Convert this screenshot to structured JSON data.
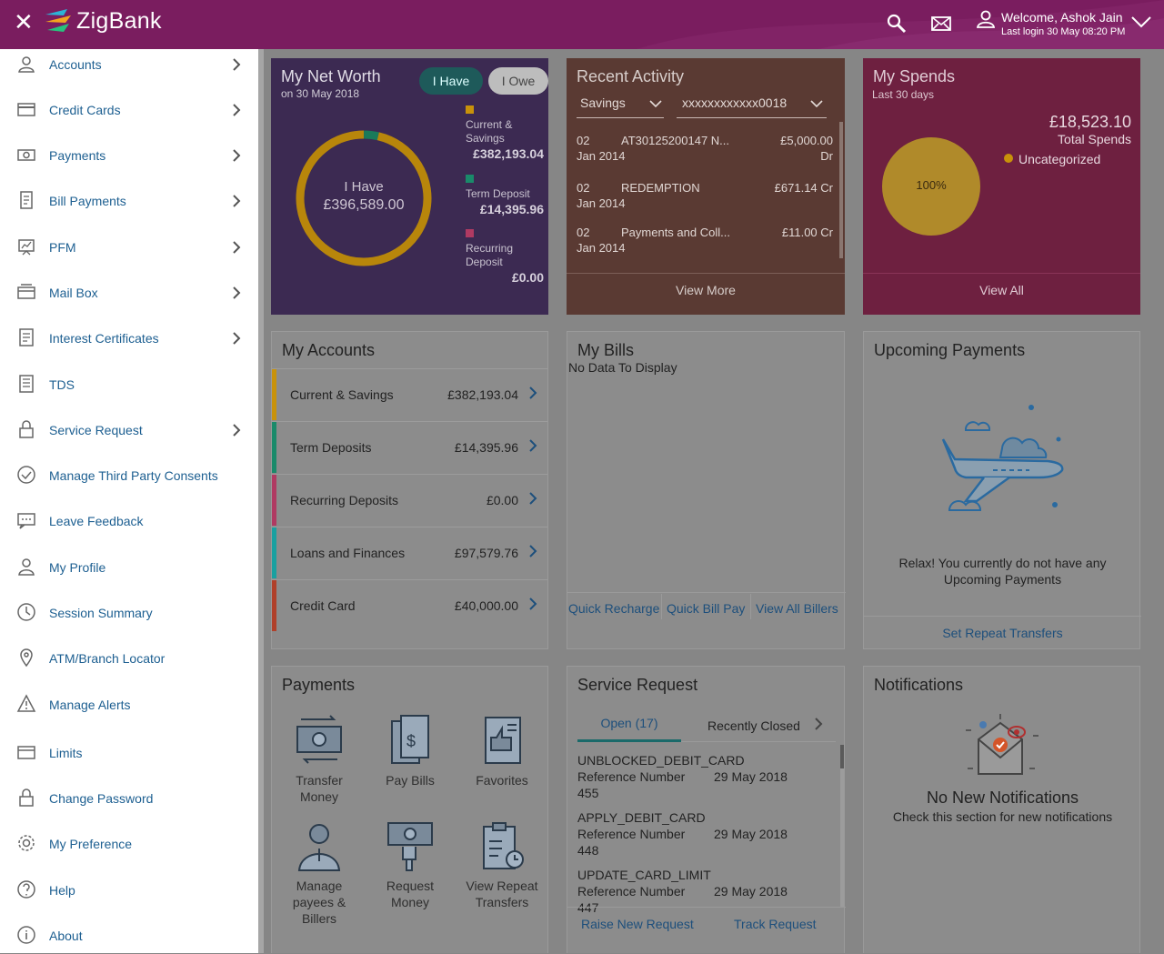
{
  "header": {
    "brand": "ZigBank",
    "welcome": "Welcome, Ashok Jain",
    "last_login": "Last login 30 May 08:20 PM",
    "close_icon": "close-icon",
    "colors": {
      "header": "#7a1d5f",
      "link": "#1d5f91"
    }
  },
  "sidebar": {
    "items": [
      {
        "label": "Accounts",
        "icon": "accounts-icon",
        "arrow": true
      },
      {
        "label": "Credit Cards",
        "icon": "credit-card-icon",
        "arrow": true
      },
      {
        "label": "Payments",
        "icon": "payments-icon",
        "arrow": true
      },
      {
        "label": "Bill Payments",
        "icon": "bill-payments-icon",
        "arrow": true
      },
      {
        "label": "PFM",
        "icon": "pfm-icon",
        "arrow": true
      },
      {
        "label": "Mail Box",
        "icon": "mailbox-icon",
        "arrow": true
      },
      {
        "label": "Interest Certificates",
        "icon": "certificate-icon",
        "arrow": true
      },
      {
        "label": "TDS",
        "icon": "tds-icon",
        "arrow": false
      },
      {
        "label": "Service Request",
        "icon": "lock-icon",
        "arrow": true
      },
      {
        "label": "Manage Third Party Consents",
        "icon": "check-circle-icon",
        "arrow": false
      },
      {
        "label": "Leave Feedback",
        "icon": "feedback-icon",
        "arrow": false
      },
      {
        "label": "My Profile",
        "icon": "profile-icon",
        "arrow": false
      },
      {
        "label": "Session Summary",
        "icon": "clock-icon",
        "arrow": false
      },
      {
        "label": "ATM/Branch Locator",
        "icon": "location-pin-icon",
        "arrow": false
      },
      {
        "label": "Manage Alerts",
        "icon": "alert-icon",
        "arrow": false
      },
      {
        "label": "Limits",
        "icon": "limits-icon",
        "arrow": false
      },
      {
        "label": "Change Password",
        "icon": "lock-icon",
        "arrow": false
      },
      {
        "label": "My Preference",
        "icon": "gear-icon",
        "arrow": false
      },
      {
        "label": "Help",
        "icon": "help-icon",
        "arrow": false
      },
      {
        "label": "About",
        "icon": "info-icon",
        "arrow": false
      }
    ]
  },
  "net_worth": {
    "title": "My Net Worth",
    "date": "on 30 May 2018",
    "tab_have": "I Have",
    "tab_owe": "I Owe",
    "center_label": "I Have",
    "center_value": "£396,589.00",
    "legend": [
      {
        "label": "Current & Savings",
        "line1": "Current &",
        "line2": "Savings",
        "value": "£382,193.04",
        "color": "#c8920a"
      },
      {
        "label": "Term Deposit",
        "line1": "Term Deposit",
        "line2": "",
        "value": "£14,395.96",
        "color": "#1a8a6a"
      },
      {
        "label": "Recurring Deposit",
        "line1": "Recurring",
        "line2": "Deposit",
        "value": "£0.00",
        "color": "#b03a62"
      }
    ],
    "donut_fractions": [
      0.9637,
      0.0363,
      0
    ]
  },
  "recent_activity": {
    "title": "Recent Activity",
    "account_type": "Savings",
    "account_number": "xxxxxxxxxxxx0018",
    "rows": [
      {
        "day": "02",
        "month": "Jan 2014",
        "desc": "AT30125200147 N...",
        "amount": "£5,000.00",
        "type": "Dr"
      },
      {
        "day": "02",
        "month": "Jan 2014",
        "desc": "REDEMPTION",
        "amount": "£671.14 Cr",
        "type": ""
      },
      {
        "day": "02",
        "month": "Jan 2014",
        "desc": "Payments and Coll...",
        "amount": "£11.00 Cr",
        "type": ""
      }
    ],
    "view_more": "View More"
  },
  "my_spends": {
    "title": "My Spends",
    "period": "Last 30 days",
    "total": "£18,523.10",
    "total_label": "Total Spends",
    "legend": "Uncategorized",
    "pie_label": "100%",
    "view_all": "View All"
  },
  "my_accounts": {
    "title": "My Accounts",
    "rows": [
      {
        "name": "Current & Savings",
        "amount": "£382,193.04",
        "color": "#c8920a"
      },
      {
        "name": "Term Deposits",
        "amount": "£14,395.96",
        "color": "#1a8a6a"
      },
      {
        "name": "Recurring Deposits",
        "amount": "£0.00",
        "color": "#b03a62"
      },
      {
        "name": "Loans and Finances",
        "amount": "£97,579.76",
        "color": "#1aa0a0"
      },
      {
        "name": "Credit Card",
        "amount": "£40,000.00",
        "color": "#b0402a"
      }
    ]
  },
  "my_bills": {
    "title": "My Bills",
    "empty": "No Data To Display",
    "links": [
      "Quick Recharge",
      "Quick Bill Pay",
      "View All Billers"
    ]
  },
  "upcoming": {
    "title": "Upcoming Payments",
    "message": "Relax! You currently do not have any Upcoming Payments",
    "link": "Set Repeat Transfers"
  },
  "payments": {
    "title": "Payments",
    "items": [
      {
        "label": "Transfer Money",
        "icon": "transfer-money-icon"
      },
      {
        "label": "Pay Bills",
        "icon": "pay-bills-icon"
      },
      {
        "label": "Favorites",
        "icon": "favorites-icon"
      },
      {
        "label": "Manage payees & Billers",
        "icon": "manage-payees-icon"
      },
      {
        "label": "Request Money",
        "icon": "request-money-icon"
      },
      {
        "label": "View Repeat Transfers",
        "icon": "repeat-transfers-icon"
      }
    ]
  },
  "service_request": {
    "title": "Service Request",
    "tab_open": "Open (17)",
    "tab_closed": "Recently Closed",
    "ref_label": "Reference Number",
    "rows": [
      {
        "type": "UNBLOCKED_DEBIT_CARD",
        "date": "29 May 2018",
        "ref": "455"
      },
      {
        "type": "APPLY_DEBIT_CARD",
        "date": "29 May 2018",
        "ref": "448"
      },
      {
        "type": "UPDATE_CARD_LIMIT",
        "date": "29 May 2018",
        "ref": "447"
      }
    ],
    "raise": "Raise New Request",
    "track": "Track Request"
  },
  "notifications": {
    "title": "Notifications",
    "heading": "No New Notifications",
    "sub": "Check this section for new notifications"
  }
}
